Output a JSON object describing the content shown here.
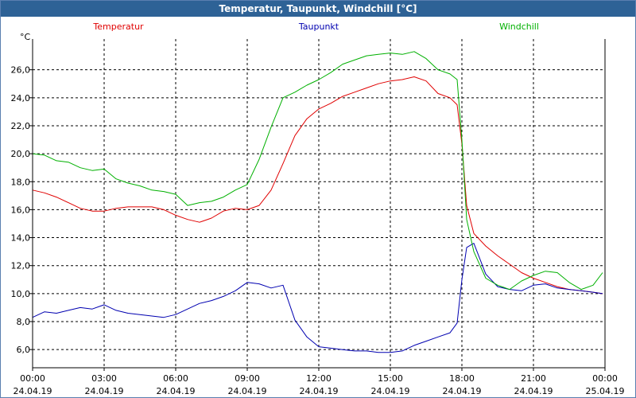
{
  "title": "Temperatur, Taupunkt, Windchill [°C]",
  "chart_data": {
    "type": "line",
    "ylabel": "°C",
    "ylim": [
      4.7,
      28.2
    ],
    "xlim": [
      0,
      24
    ],
    "grid": true,
    "legend_position": "top",
    "y_ticks": [
      {
        "value": 6,
        "label": "6,0"
      },
      {
        "value": 8,
        "label": "8,0"
      },
      {
        "value": 10,
        "label": "10,0"
      },
      {
        "value": 12,
        "label": "12,0"
      },
      {
        "value": 14,
        "label": "14,0"
      },
      {
        "value": 16,
        "label": "16,0"
      },
      {
        "value": 18,
        "label": "18,0"
      },
      {
        "value": 20,
        "label": "20,0"
      },
      {
        "value": 22,
        "label": "22,0"
      },
      {
        "value": 24,
        "label": "24,0"
      },
      {
        "value": 26,
        "label": "26,0"
      }
    ],
    "x_ticks": [
      {
        "hour": 0,
        "time": "00:00",
        "date": "24.04.19"
      },
      {
        "hour": 3,
        "time": "03:00",
        "date": "24.04.19"
      },
      {
        "hour": 6,
        "time": "06:00",
        "date": "24.04.19"
      },
      {
        "hour": 9,
        "time": "09:00",
        "date": "24.04.19"
      },
      {
        "hour": 12,
        "time": "12:00",
        "date": "24.04.19"
      },
      {
        "hour": 15,
        "time": "15:00",
        "date": "24.04.19"
      },
      {
        "hour": 18,
        "time": "18:00",
        "date": "24.04.19"
      },
      {
        "hour": 21,
        "time": "21:00",
        "date": "24.04.19"
      },
      {
        "hour": 24,
        "time": "00:00",
        "date": "25.04.19"
      }
    ],
    "series": [
      {
        "name": "Temperatur",
        "color": "#e00000",
        "x": [
          0,
          0.5,
          1,
          1.5,
          2,
          2.5,
          3,
          3.5,
          4,
          4.5,
          5,
          5.5,
          6,
          6.5,
          7,
          7.5,
          8,
          8.5,
          9,
          9.5,
          10,
          10.5,
          11,
          11.5,
          12,
          12.5,
          13,
          13.5,
          14,
          14.5,
          15,
          15.5,
          16,
          16.5,
          17,
          17.5,
          17.8,
          18,
          18.2,
          18.5,
          19,
          19.5,
          20,
          20.5,
          21,
          21.5,
          22,
          22.5,
          23,
          23.5,
          23.9
        ],
        "y": [
          17.4,
          17.2,
          16.9,
          16.5,
          16.1,
          15.9,
          15.9,
          16.1,
          16.2,
          16.2,
          16.2,
          16.0,
          15.6,
          15.3,
          15.1,
          15.4,
          15.9,
          16.1,
          16.0,
          16.3,
          17.4,
          19.3,
          21.3,
          22.5,
          23.2,
          23.6,
          24.1,
          24.4,
          24.7,
          25.0,
          25.2,
          25.3,
          25.5,
          25.2,
          24.3,
          24.0,
          23.5,
          20.7,
          16.3,
          14.3,
          13.4,
          12.7,
          12.1,
          11.5,
          11.1,
          10.8,
          10.5,
          10.3,
          10.2,
          10.1,
          10.0
        ]
      },
      {
        "name": "Taupunkt",
        "color": "#0000b0",
        "x": [
          0,
          0.5,
          1,
          1.5,
          2,
          2.5,
          3,
          3.5,
          4,
          4.5,
          5,
          5.5,
          6,
          6.5,
          7,
          7.5,
          8,
          8.5,
          9,
          9.5,
          10,
          10.5,
          11,
          11.5,
          12,
          12.5,
          13,
          13.5,
          14,
          14.5,
          15,
          15.5,
          16,
          16.5,
          17,
          17.5,
          17.8,
          18,
          18.2,
          18.5,
          19,
          19.5,
          20,
          20.5,
          21,
          21.5,
          22,
          22.5,
          23,
          23.5,
          23.9
        ],
        "y": [
          8.3,
          8.7,
          8.6,
          8.8,
          9.0,
          8.9,
          9.2,
          8.8,
          8.6,
          8.5,
          8.4,
          8.3,
          8.5,
          8.9,
          9.3,
          9.5,
          9.8,
          10.2,
          10.8,
          10.7,
          10.4,
          10.6,
          8.1,
          6.9,
          6.2,
          6.1,
          6.0,
          5.9,
          5.9,
          5.8,
          5.8,
          5.9,
          6.3,
          6.6,
          6.9,
          7.2,
          7.9,
          11.0,
          13.3,
          13.6,
          11.4,
          10.5,
          10.3,
          10.2,
          10.6,
          10.7,
          10.4,
          10.3,
          10.2,
          10.1,
          10.0
        ]
      },
      {
        "name": "Windchill",
        "color": "#00b000",
        "x": [
          0,
          0.5,
          1,
          1.5,
          2,
          2.5,
          3,
          3.5,
          4,
          4.5,
          5,
          5.5,
          6,
          6.5,
          7,
          7.5,
          8,
          8.5,
          9,
          9.5,
          10,
          10.5,
          11,
          11.5,
          12,
          12.5,
          13,
          13.5,
          14,
          14.5,
          15,
          15.5,
          16,
          16.5,
          17,
          17.5,
          17.8,
          18,
          18.2,
          18.5,
          19,
          19.5,
          20,
          20.5,
          21,
          21.5,
          22,
          22.5,
          23,
          23.5,
          23.9
        ],
        "y": [
          20.0,
          19.9,
          19.5,
          19.4,
          19.0,
          18.8,
          18.9,
          18.2,
          17.9,
          17.7,
          17.4,
          17.3,
          17.1,
          16.3,
          16.5,
          16.6,
          16.9,
          17.4,
          17.8,
          19.6,
          21.9,
          24.0,
          24.4,
          24.9,
          25.3,
          25.8,
          26.4,
          26.7,
          27.0,
          27.1,
          27.2,
          27.1,
          27.3,
          26.8,
          26.0,
          25.7,
          25.3,
          21.0,
          15.3,
          13.0,
          11.1,
          10.6,
          10.3,
          10.9,
          11.3,
          11.6,
          11.5,
          10.8,
          10.3,
          10.6,
          11.5
        ]
      }
    ]
  }
}
